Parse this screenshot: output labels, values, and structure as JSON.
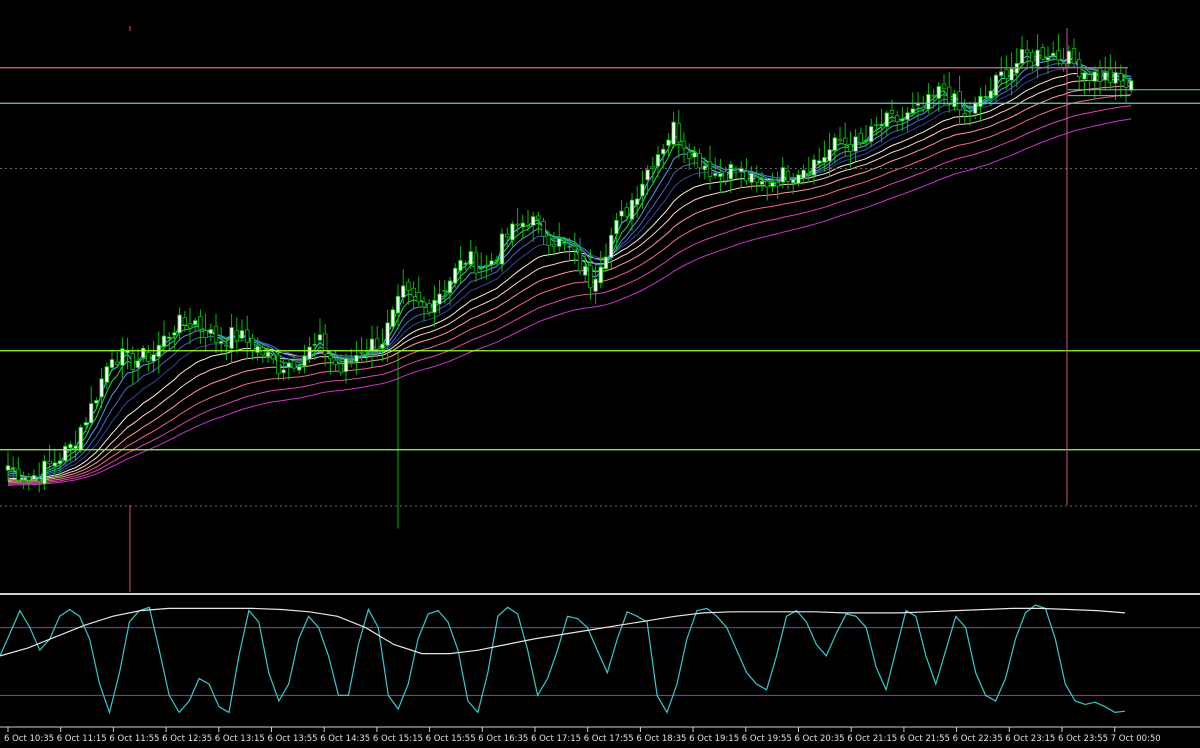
{
  "colors": {
    "background": "#000000",
    "bull_candle": "#00c000",
    "bull_body": "#f0fff0",
    "bear_candle": "#00c000",
    "bear_body": "#000000",
    "level_lime": "#99ff33",
    "level_cyan": "#66cccc",
    "level_magenta": "#cc5599",
    "stoch_main": "#33cccc",
    "stoch_slow": "#e6e6e6",
    "stoch_level": "#9933cc",
    "axis_text": "#e0e0e0",
    "separator": "#cfcfcf",
    "grid_dotted": "#555555"
  },
  "chart_data": [
    {
      "type": "candlestick",
      "panel": "price",
      "title": "",
      "xlabel": "",
      "ylabel": "",
      "x_tick_labels": [
        "6 Oct 10:35",
        "6 Oct 11:15",
        "6 Oct 11:55",
        "6 Oct 12:35",
        "6 Oct 13:15",
        "6 Oct 13:55",
        "6 Oct 14:35",
        "6 Oct 15:15",
        "6 Oct 15:55",
        "6 Oct 16:35",
        "6 Oct 17:15",
        "6 Oct 17:55",
        "6 Oct 18:35",
        "6 Oct 19:15",
        "6 Oct 19:55",
        "6 Oct 20:35",
        "6 Oct 21:15",
        "6 Oct 21:55",
        "6 Oct 22:35",
        "6 Oct 23:15",
        "6 Oct 23:55",
        "7 Oct 00:50"
      ],
      "ylim": [
        0,
        100
      ],
      "grid": false,
      "close_anchors": [
        [
          0,
          11
        ],
        [
          4,
          8
        ],
        [
          8,
          11
        ],
        [
          12,
          15
        ],
        [
          16,
          24
        ],
        [
          20,
          36
        ],
        [
          24,
          34
        ],
        [
          28,
          36
        ],
        [
          32,
          42
        ],
        [
          36,
          43
        ],
        [
          40,
          39
        ],
        [
          44,
          40
        ],
        [
          48,
          37
        ],
        [
          52,
          33
        ],
        [
          56,
          35
        ],
        [
          60,
          38
        ],
        [
          64,
          32
        ],
        [
          68,
          37
        ],
        [
          72,
          39
        ],
        [
          76,
          49
        ],
        [
          80,
          46
        ],
        [
          84,
          51
        ],
        [
          88,
          57
        ],
        [
          92,
          55
        ],
        [
          96,
          62
        ],
        [
          100,
          66
        ],
        [
          104,
          62
        ],
        [
          108,
          59
        ],
        [
          112,
          52
        ],
        [
          116,
          62
        ],
        [
          120,
          70
        ],
        [
          124,
          79
        ],
        [
          128,
          86
        ],
        [
          132,
          80
        ],
        [
          136,
          76
        ],
        [
          140,
          77
        ],
        [
          144,
          73
        ],
        [
          148,
          75
        ],
        [
          152,
          77
        ],
        [
          156,
          79
        ],
        [
          160,
          83
        ],
        [
          164,
          82
        ],
        [
          168,
          87
        ],
        [
          172,
          88
        ],
        [
          176,
          90
        ],
        [
          180,
          95
        ],
        [
          184,
          88
        ],
        [
          188,
          93
        ],
        [
          192,
          99
        ],
        [
          196,
          102
        ],
        [
          200,
          103
        ],
        [
          204,
          101
        ],
        [
          208,
          98
        ],
        [
          212,
          97
        ],
        [
          216,
          95
        ]
      ],
      "moving_average_ribbon": {
        "periods": [
          3,
          5,
          8,
          12,
          17,
          24,
          32,
          42,
          54,
          68,
          84
        ],
        "colors": [
          "#33ccff",
          "#22dd44",
          "#5599ee",
          "#4466cc",
          "#334499",
          "#fff0d0",
          "#ffd0c0",
          "#ff9999",
          "#ee6688",
          "#dd44aa",
          "#cc33cc"
        ]
      },
      "horizontal_levels": [
        {
          "name": "level-top-magenta",
          "value": 99.4,
          "color": "#cc5599"
        },
        {
          "name": "level-upper-cyan",
          "value": 91.5,
          "color": "#66cccc"
        },
        {
          "name": "level-mid-dotted",
          "value": 77,
          "color": "#666666",
          "dashed": true
        },
        {
          "name": "level-lime-upper",
          "value": 36.5,
          "color": "#99ff33"
        },
        {
          "name": "level-lime-lower",
          "value": 14.5,
          "color": "#99ff33"
        },
        {
          "name": "level-low-dotted",
          "value": 2,
          "color": "#666666",
          "dashed": true
        }
      ]
    },
    {
      "type": "line",
      "panel": "stochastic",
      "title": "",
      "ylim": [
        0,
        100
      ],
      "levels": [
        80,
        20
      ],
      "series": [
        {
          "values": [
            55,
            75,
            95,
            80,
            60,
            70,
            90,
            96,
            90,
            70,
            30,
            5,
            40,
            85,
            95,
            98,
            60,
            20,
            5,
            15,
            35,
            30,
            10,
            5,
            55,
            95,
            85,
            40,
            15,
            30,
            70,
            90,
            80,
            55,
            20,
            20,
            65,
            96,
            80,
            20,
            8,
            30,
            70,
            92,
            95,
            85,
            60,
            15,
            5,
            40,
            90,
            98,
            92,
            60,
            20,
            35,
            60,
            90,
            88,
            80,
            60,
            40,
            70,
            94,
            90,
            85,
            20,
            5,
            30,
            70,
            95,
            97,
            90,
            80,
            60,
            40,
            30,
            25,
            55,
            90,
            95,
            85,
            65,
            55,
            75,
            92,
            90,
            80,
            45,
            25,
            60,
            95,
            90,
            55,
            30,
            60,
            90,
            80,
            40,
            20,
            15,
            35,
            70,
            93,
            100,
            97,
            70,
            30,
            15,
            12,
            14,
            10,
            5,
            6
          ]
        },
        {
          "values": [
            55,
            62,
            72,
            82,
            90,
            95,
            97,
            97,
            97,
            97,
            96,
            94,
            90,
            80,
            65,
            57,
            57,
            60,
            65,
            70,
            74,
            78,
            82,
            86,
            90,
            93,
            94,
            94,
            94,
            94,
            93,
            93,
            93,
            94,
            95,
            96,
            97,
            97,
            96,
            95,
            93
          ]
        }
      ]
    }
  ]
}
